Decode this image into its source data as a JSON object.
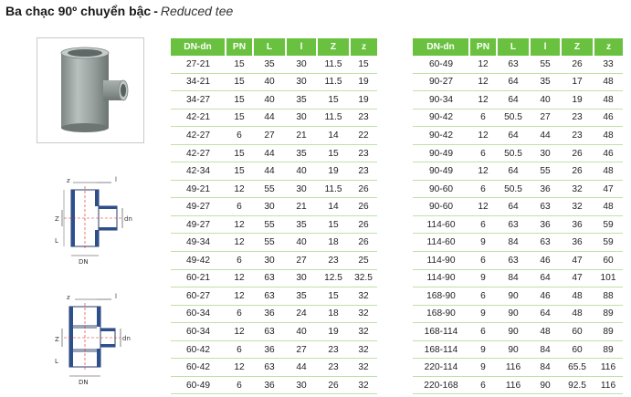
{
  "header": {
    "title_vi": "Ba chạc 90º chuyển bậc",
    "separator": "-",
    "title_en": "Reduced tee"
  },
  "diagram_labels": {
    "z": "z",
    "l_small": "l",
    "Z": "Z",
    "L": "L",
    "DN": "DN",
    "dn": "dn"
  },
  "columns": [
    "DN-dn",
    "PN",
    "L",
    "l",
    "Z",
    "z"
  ],
  "tables": {
    "left": [
      [
        "27-21",
        "15",
        "35",
        "30",
        "11.5",
        "15"
      ],
      [
        "34-21",
        "15",
        "40",
        "30",
        "11.5",
        "19"
      ],
      [
        "34-27",
        "15",
        "40",
        "35",
        "15",
        "19"
      ],
      [
        "42-21",
        "15",
        "44",
        "30",
        "11.5",
        "23"
      ],
      [
        "42-27",
        "6",
        "27",
        "21",
        "14",
        "22"
      ],
      [
        "42-27",
        "15",
        "44",
        "35",
        "15",
        "23"
      ],
      [
        "42-34",
        "15",
        "44",
        "40",
        "19",
        "23"
      ],
      [
        "49-21",
        "12",
        "55",
        "30",
        "11.5",
        "26"
      ],
      [
        "49-27",
        "6",
        "30",
        "21",
        "14",
        "26"
      ],
      [
        "49-27",
        "12",
        "55",
        "35",
        "15",
        "26"
      ],
      [
        "49-34",
        "12",
        "55",
        "40",
        "18",
        "26"
      ],
      [
        "49-42",
        "6",
        "30",
        "27",
        "23",
        "25"
      ],
      [
        "60-21",
        "12",
        "63",
        "30",
        "12.5",
        "32.5"
      ],
      [
        "60-27",
        "12",
        "63",
        "35",
        "15",
        "32"
      ],
      [
        "60-34",
        "6",
        "36",
        "24",
        "18",
        "32"
      ],
      [
        "60-34",
        "12",
        "63",
        "40",
        "19",
        "32"
      ],
      [
        "60-42",
        "6",
        "36",
        "27",
        "23",
        "32"
      ],
      [
        "60-42",
        "12",
        "63",
        "44",
        "23",
        "32"
      ],
      [
        "60-49",
        "6",
        "36",
        "30",
        "26",
        "32"
      ]
    ],
    "right": [
      [
        "60-49",
        "12",
        "63",
        "55",
        "26",
        "33"
      ],
      [
        "90-27",
        "12",
        "64",
        "35",
        "17",
        "48"
      ],
      [
        "90-34",
        "12",
        "64",
        "40",
        "19",
        "48"
      ],
      [
        "90-42",
        "6",
        "50.5",
        "27",
        "23",
        "46"
      ],
      [
        "90-42",
        "12",
        "64",
        "44",
        "23",
        "48"
      ],
      [
        "90-49",
        "6",
        "50.5",
        "30",
        "26",
        "46"
      ],
      [
        "90-49",
        "12",
        "64",
        "55",
        "26",
        "48"
      ],
      [
        "90-60",
        "6",
        "50.5",
        "36",
        "32",
        "47"
      ],
      [
        "90-60",
        "12",
        "64",
        "63",
        "32",
        "48"
      ],
      [
        "114-60",
        "6",
        "63",
        "36",
        "36",
        "59"
      ],
      [
        "114-60",
        "9",
        "84",
        "63",
        "36",
        "59"
      ],
      [
        "114-90",
        "6",
        "63",
        "46",
        "47",
        "60"
      ],
      [
        "114-90",
        "9",
        "84",
        "64",
        "47",
        "101"
      ],
      [
        "168-90",
        "6",
        "90",
        "46",
        "48",
        "88"
      ],
      [
        "168-90",
        "9",
        "90",
        "64",
        "48",
        "89"
      ],
      [
        "168-114",
        "6",
        "90",
        "48",
        "60",
        "89"
      ],
      [
        "168-114",
        "9",
        "90",
        "84",
        "60",
        "89"
      ],
      [
        "220-114",
        "9",
        "116",
        "84",
        "65.5",
        "116"
      ],
      [
        "220-168",
        "6",
        "116",
        "90",
        "92.5",
        "116"
      ]
    ]
  }
}
